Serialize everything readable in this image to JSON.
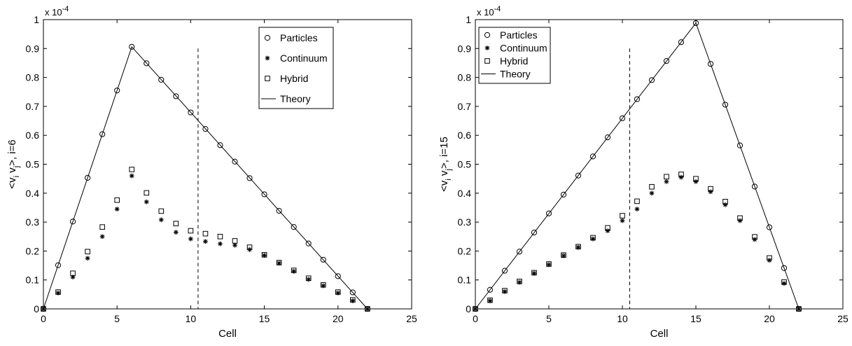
{
  "chart_data": [
    {
      "type": "scatter",
      "title": "",
      "xlabel": "Cell",
      "ylabel": "<v v >, i=6",
      "ylabel_main": "<v",
      "ylabel_sub1": "i",
      "ylabel_mid": " v",
      "ylabel_sub2": "j",
      "ylabel_tail": ">, i=6",
      "scale_label": "x 10",
      "scale_exp": "-4",
      "xlim": [
        0,
        25
      ],
      "ylim": [
        0,
        1
      ],
      "xticks": [
        "0",
        "5",
        "10",
        "15",
        "20",
        "25"
      ],
      "yticks": [
        "0",
        "0.1",
        "0.2",
        "0.3",
        "0.4",
        "0.5",
        "0.6",
        "0.7",
        "0.8",
        "0.9",
        "1"
      ],
      "grid": false,
      "legend_position": "top-right",
      "divider_x": 10.5,
      "series": [
        {
          "name": "Particles",
          "marker": "circle",
          "x": [
            0,
            1,
            2,
            3,
            4,
            5,
            6,
            7,
            8,
            9,
            10,
            11,
            12,
            13,
            14,
            15,
            16,
            17,
            18,
            19,
            20,
            21,
            22
          ],
          "y": [
            0,
            0.151,
            0.302,
            0.453,
            0.604,
            0.755,
            0.906,
            0.849,
            0.792,
            0.735,
            0.679,
            0.622,
            0.566,
            0.509,
            0.452,
            0.396,
            0.339,
            0.283,
            0.226,
            0.17,
            0.113,
            0.057,
            0
          ]
        },
        {
          "name": "Continuum",
          "marker": "asterisk",
          "x": [
            0,
            1,
            2,
            3,
            4,
            5,
            6,
            7,
            8,
            9,
            10,
            11,
            12,
            13,
            14,
            15,
            16,
            17,
            18,
            19,
            20,
            21,
            22
          ],
          "y": [
            0,
            0.055,
            0.11,
            0.175,
            0.25,
            0.345,
            0.46,
            0.37,
            0.308,
            0.265,
            0.242,
            0.233,
            0.225,
            0.22,
            0.205,
            0.185,
            0.158,
            0.13,
            0.102,
            0.08,
            0.055,
            0.028,
            0
          ]
        },
        {
          "name": "Hybrid",
          "marker": "square",
          "x": [
            0,
            1,
            2,
            3,
            4,
            5,
            6,
            7,
            8,
            9,
            10,
            11,
            12,
            13,
            14,
            15,
            16,
            17,
            18,
            19,
            20,
            21,
            22
          ],
          "y": [
            0,
            0.058,
            0.123,
            0.198,
            0.283,
            0.376,
            0.482,
            0.401,
            0.338,
            0.295,
            0.27,
            0.26,
            0.25,
            0.235,
            0.213,
            0.187,
            0.16,
            0.133,
            0.106,
            0.083,
            0.058,
            0.031,
            0
          ]
        },
        {
          "name": "Theory",
          "marker": "line",
          "x": [
            0,
            6,
            22
          ],
          "y": [
            0,
            0.906,
            0
          ]
        }
      ]
    },
    {
      "type": "scatter",
      "title": "",
      "xlabel": "Cell",
      "ylabel": "<v v >, i=15",
      "ylabel_main": "<v",
      "ylabel_sub1": "i",
      "ylabel_mid": " v",
      "ylabel_sub2": "j",
      "ylabel_tail": ">, i=15",
      "scale_label": "x 10",
      "scale_exp": "-4",
      "xlim": [
        0,
        25
      ],
      "ylim": [
        0,
        1
      ],
      "xticks": [
        "0",
        "5",
        "10",
        "15",
        "20",
        "25"
      ],
      "yticks": [
        "0",
        "0.1",
        "0.2",
        "0.3",
        "0.4",
        "0.5",
        "0.6",
        "0.7",
        "0.8",
        "0.9",
        "1"
      ],
      "grid": false,
      "legend_position": "top-left",
      "divider_x": 10.5,
      "series": [
        {
          "name": "Particles",
          "marker": "circle",
          "x": [
            0,
            1,
            2,
            3,
            4,
            5,
            6,
            7,
            8,
            9,
            10,
            11,
            12,
            13,
            14,
            15,
            16,
            17,
            18,
            19,
            20,
            21,
            22
          ],
          "y": [
            0,
            0.066,
            0.132,
            0.198,
            0.264,
            0.33,
            0.395,
            0.461,
            0.527,
            0.593,
            0.659,
            0.725,
            0.791,
            0.857,
            0.922,
            0.988,
            0.847,
            0.706,
            0.565,
            0.423,
            0.282,
            0.141,
            0
          ]
        },
        {
          "name": "Continuum",
          "marker": "asterisk",
          "x": [
            0,
            1,
            2,
            3,
            4,
            5,
            6,
            7,
            8,
            9,
            10,
            11,
            12,
            13,
            14,
            15,
            16,
            17,
            18,
            19,
            20,
            21,
            22
          ],
          "y": [
            0,
            0.028,
            0.06,
            0.092,
            0.123,
            0.153,
            0.184,
            0.213,
            0.242,
            0.27,
            0.305,
            0.345,
            0.4,
            0.44,
            0.455,
            0.44,
            0.405,
            0.36,
            0.305,
            0.24,
            0.168,
            0.088,
            0
          ]
        },
        {
          "name": "Hybrid",
          "marker": "square",
          "x": [
            0,
            1,
            2,
            3,
            4,
            5,
            6,
            7,
            8,
            9,
            10,
            11,
            12,
            13,
            14,
            15,
            16,
            17,
            18,
            19,
            20,
            21,
            22
          ],
          "y": [
            0,
            0.03,
            0.063,
            0.095,
            0.125,
            0.155,
            0.186,
            0.215,
            0.246,
            0.28,
            0.322,
            0.372,
            0.422,
            0.457,
            0.465,
            0.45,
            0.415,
            0.371,
            0.314,
            0.249,
            0.176,
            0.093,
            0
          ]
        },
        {
          "name": "Theory",
          "marker": "line",
          "x": [
            0,
            15,
            22
          ],
          "y": [
            0,
            0.988,
            0
          ]
        }
      ]
    }
  ]
}
